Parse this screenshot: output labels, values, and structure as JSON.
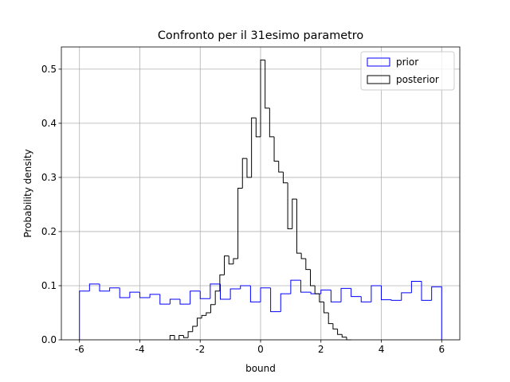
{
  "chart_data": {
    "type": "histogram",
    "title": "Confronto per il 31esimo parametro",
    "xlabel": "bound",
    "ylabel": "Probability density",
    "xlim": [
      -6.6,
      6.6
    ],
    "ylim": [
      0,
      0.541
    ],
    "xticks": [
      -6,
      -4,
      -2,
      0,
      2,
      4,
      6
    ],
    "yticks": [
      0.0,
      0.1,
      0.2,
      0.3,
      0.4,
      0.5
    ],
    "grid": true,
    "legend": "upper right",
    "series": [
      {
        "name": "prior",
        "color": "#0000ff",
        "bins": [
          -6,
          -5.667,
          -5.333,
          -5,
          -4.667,
          -4.333,
          -4,
          -3.667,
          -3.333,
          -3,
          -2.667,
          -2.333,
          -2,
          -1.667,
          -1.333,
          -1,
          -0.667,
          -0.333,
          0,
          0.333,
          0.667,
          1,
          1.333,
          1.667,
          2,
          2.333,
          2.667,
          3,
          3.333,
          3.667,
          4,
          4.333,
          4.667,
          5,
          5.333,
          5.667,
          6
        ],
        "values": [
          0.09,
          0.103,
          0.09,
          0.096,
          0.078,
          0.088,
          0.078,
          0.084,
          0.066,
          0.075,
          0.066,
          0.09,
          0.076,
          0.103,
          0.075,
          0.094,
          0.1,
          0.07,
          0.096,
          0.052,
          0.085,
          0.11,
          0.088,
          0.085,
          0.092,
          0.07,
          0.095,
          0.08,
          0.07,
          0.1,
          0.074,
          0.073,
          0.087,
          0.108,
          0.073,
          0.098
        ]
      },
      {
        "name": "posterior",
        "color": "#000000",
        "bins": [
          -3,
          -2.85,
          -2.7,
          -2.55,
          -2.4,
          -2.25,
          -2.1,
          -1.95,
          -1.8,
          -1.65,
          -1.5,
          -1.35,
          -1.2,
          -1.05,
          -0.9,
          -0.75,
          -0.6,
          -0.45,
          -0.3,
          -0.15,
          0,
          0.15,
          0.3,
          0.45,
          0.6,
          0.75,
          0.9,
          1.05,
          1.2,
          1.35,
          1.5,
          1.65,
          1.8,
          1.95,
          2.1,
          2.25,
          2.4,
          2.55,
          2.7,
          2.85,
          3
        ],
        "values": [
          0.008,
          0,
          0.008,
          0.004,
          0.015,
          0.025,
          0.04,
          0.045,
          0.05,
          0.065,
          0.09,
          0.12,
          0.155,
          0.14,
          0.15,
          0.28,
          0.335,
          0.3,
          0.41,
          0.375,
          0.517,
          0.428,
          0.375,
          0.33,
          0.31,
          0.29,
          0.205,
          0.26,
          0.16,
          0.15,
          0.13,
          0.1,
          0.085,
          0.07,
          0.05,
          0.03,
          0.02,
          0.01,
          0.005,
          0
        ]
      }
    ]
  }
}
